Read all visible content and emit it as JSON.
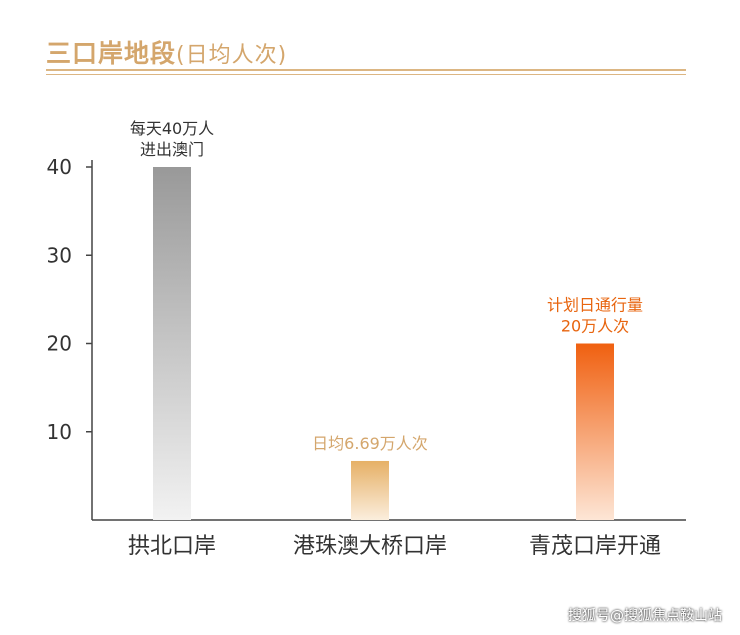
{
  "header": {
    "title_main": "三口岸地段",
    "title_sub": "(日均人次)"
  },
  "watermark": "搜狐号@搜狐焦点鞍山站",
  "chart_data": {
    "type": "bar",
    "title": "三口岸地段(日均人次)",
    "categories": [
      "拱北口岸",
      "港珠澳大桥口岸",
      "青茂口岸开通"
    ],
    "values": [
      40,
      6.69,
      20
    ],
    "ylim": [
      0,
      40
    ],
    "yticks": [
      10,
      20,
      30,
      40
    ],
    "grid": false,
    "annotations": [
      {
        "lines": [
          "每天40万人",
          "进出澳门"
        ],
        "color": "#333333"
      },
      {
        "lines": [
          "日均6.69万人次"
        ],
        "color": "#d4a66c"
      },
      {
        "lines": [
          "计划日通行量",
          "20万人次"
        ],
        "color": "#e8650f"
      }
    ],
    "colors": [
      {
        "top": "#999999",
        "bottom": "#f2f2f2"
      },
      {
        "top": "#e6b066",
        "bottom": "#fbeedd"
      },
      {
        "top": "#f06010",
        "bottom": "#fde6d6"
      }
    ]
  }
}
